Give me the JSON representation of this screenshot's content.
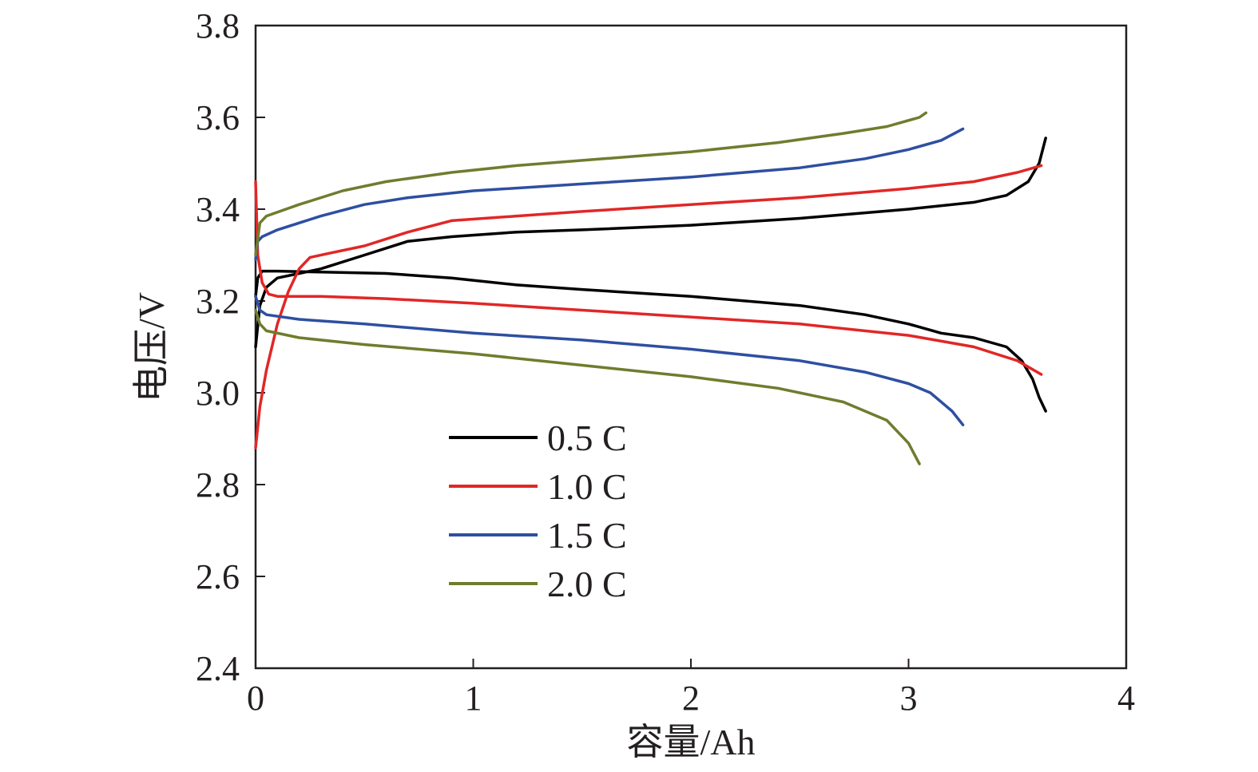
{
  "chart_data": {
    "type": "line",
    "xlabel": "容量/Ah",
    "ylabel": "电压/V",
    "xlim": [
      0,
      4
    ],
    "ylim": [
      2.4,
      3.8
    ],
    "x_ticks": [
      0,
      1,
      2,
      3,
      4
    ],
    "y_ticks": [
      2.4,
      2.6,
      2.8,
      3.0,
      3.2,
      3.4,
      3.6,
      3.8
    ],
    "x_tick_labels": [
      "0",
      "1",
      "2",
      "3",
      "4"
    ],
    "y_tick_labels": [
      "2.4",
      "2.6",
      "2.8",
      "3.0",
      "3.2",
      "3.4",
      "3.6",
      "3.8"
    ],
    "grid": false,
    "legend_position": "center-left",
    "series": [
      {
        "name": "0.5 C",
        "color": "#000000",
        "charge": [
          [
            0,
            3.1
          ],
          [
            0.02,
            3.19
          ],
          [
            0.05,
            3.23
          ],
          [
            0.1,
            3.25
          ],
          [
            0.2,
            3.26
          ],
          [
            0.3,
            3.27
          ],
          [
            0.5,
            3.3
          ],
          [
            0.7,
            3.33
          ],
          [
            0.9,
            3.34
          ],
          [
            1.2,
            3.35
          ],
          [
            1.5,
            3.355
          ],
          [
            2.0,
            3.365
          ],
          [
            2.5,
            3.38
          ],
          [
            3.0,
            3.4
          ],
          [
            3.3,
            3.415
          ],
          [
            3.45,
            3.43
          ],
          [
            3.55,
            3.46
          ],
          [
            3.6,
            3.5
          ],
          [
            3.63,
            3.555
          ]
        ],
        "discharge": [
          [
            0,
            3.21
          ],
          [
            0.01,
            3.25
          ],
          [
            0.03,
            3.265
          ],
          [
            0.1,
            3.265
          ],
          [
            0.3,
            3.263
          ],
          [
            0.6,
            3.26
          ],
          [
            0.9,
            3.25
          ],
          [
            1.2,
            3.235
          ],
          [
            1.5,
            3.225
          ],
          [
            2.0,
            3.21
          ],
          [
            2.5,
            3.19
          ],
          [
            2.8,
            3.17
          ],
          [
            3.0,
            3.15
          ],
          [
            3.15,
            3.13
          ],
          [
            3.3,
            3.12
          ],
          [
            3.45,
            3.1
          ],
          [
            3.52,
            3.07
          ],
          [
            3.57,
            3.03
          ],
          [
            3.6,
            2.99
          ],
          [
            3.63,
            2.96
          ]
        ]
      },
      {
        "name": "1.0 C",
        "color": "#e12726",
        "charge": [
          [
            0,
            2.88
          ],
          [
            0.02,
            2.97
          ],
          [
            0.05,
            3.05
          ],
          [
            0.1,
            3.15
          ],
          [
            0.15,
            3.22
          ],
          [
            0.2,
            3.27
          ],
          [
            0.25,
            3.295
          ],
          [
            0.35,
            3.305
          ],
          [
            0.5,
            3.32
          ],
          [
            0.7,
            3.35
          ],
          [
            0.9,
            3.375
          ],
          [
            1.2,
            3.385
          ],
          [
            1.5,
            3.395
          ],
          [
            2.0,
            3.41
          ],
          [
            2.5,
            3.425
          ],
          [
            3.0,
            3.445
          ],
          [
            3.3,
            3.46
          ],
          [
            3.5,
            3.48
          ],
          [
            3.61,
            3.495
          ]
        ],
        "discharge": [
          [
            0,
            3.46
          ],
          [
            0.01,
            3.3
          ],
          [
            0.03,
            3.24
          ],
          [
            0.06,
            3.215
          ],
          [
            0.1,
            3.21
          ],
          [
            0.3,
            3.21
          ],
          [
            0.6,
            3.205
          ],
          [
            1.0,
            3.195
          ],
          [
            1.5,
            3.18
          ],
          [
            2.0,
            3.165
          ],
          [
            2.5,
            3.15
          ],
          [
            3.0,
            3.125
          ],
          [
            3.3,
            3.1
          ],
          [
            3.5,
            3.07
          ],
          [
            3.61,
            3.04
          ]
        ]
      },
      {
        "name": "1.5 C",
        "color": "#2e4fa1",
        "charge": [
          [
            0,
            3.29
          ],
          [
            0.01,
            3.33
          ],
          [
            0.03,
            3.34
          ],
          [
            0.1,
            3.355
          ],
          [
            0.3,
            3.385
          ],
          [
            0.5,
            3.41
          ],
          [
            0.7,
            3.425
          ],
          [
            1.0,
            3.44
          ],
          [
            1.5,
            3.455
          ],
          [
            2.0,
            3.47
          ],
          [
            2.5,
            3.49
          ],
          [
            2.8,
            3.51
          ],
          [
            3.0,
            3.53
          ],
          [
            3.15,
            3.55
          ],
          [
            3.25,
            3.575
          ]
        ],
        "discharge": [
          [
            0,
            3.21
          ],
          [
            0.02,
            3.18
          ],
          [
            0.05,
            3.17
          ],
          [
            0.2,
            3.16
          ],
          [
            0.5,
            3.15
          ],
          [
            1.0,
            3.13
          ],
          [
            1.5,
            3.115
          ],
          [
            2.0,
            3.095
          ],
          [
            2.5,
            3.07
          ],
          [
            2.8,
            3.045
          ],
          [
            3.0,
            3.02
          ],
          [
            3.1,
            3.0
          ],
          [
            3.2,
            2.96
          ],
          [
            3.25,
            2.93
          ]
        ]
      },
      {
        "name": "2.0 C",
        "color": "#6e7d2e",
        "charge": [
          [
            0,
            3.3
          ],
          [
            0.02,
            3.37
          ],
          [
            0.05,
            3.385
          ],
          [
            0.2,
            3.41
          ],
          [
            0.4,
            3.44
          ],
          [
            0.6,
            3.46
          ],
          [
            0.9,
            3.48
          ],
          [
            1.2,
            3.495
          ],
          [
            1.6,
            3.51
          ],
          [
            2.0,
            3.525
          ],
          [
            2.4,
            3.545
          ],
          [
            2.7,
            3.565
          ],
          [
            2.9,
            3.58
          ],
          [
            3.05,
            3.6
          ],
          [
            3.08,
            3.61
          ]
        ],
        "discharge": [
          [
            0,
            3.18
          ],
          [
            0.02,
            3.15
          ],
          [
            0.05,
            3.135
          ],
          [
            0.2,
            3.12
          ],
          [
            0.5,
            3.105
          ],
          [
            1.0,
            3.085
          ],
          [
            1.5,
            3.06
          ],
          [
            2.0,
            3.035
          ],
          [
            2.4,
            3.01
          ],
          [
            2.7,
            2.98
          ],
          [
            2.9,
            2.94
          ],
          [
            3.0,
            2.89
          ],
          [
            3.05,
            2.845
          ]
        ]
      }
    ]
  }
}
